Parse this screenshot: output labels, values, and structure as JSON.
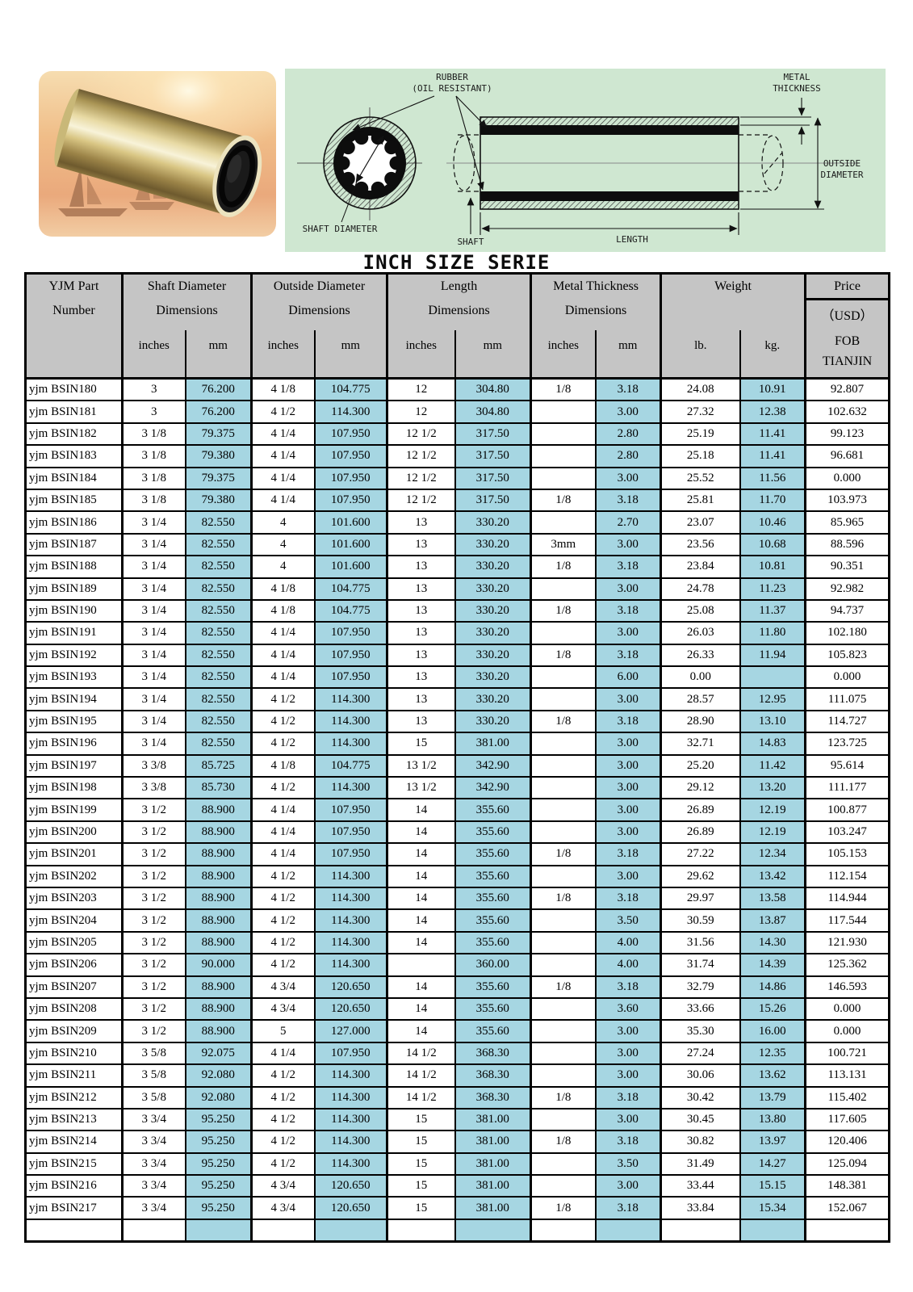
{
  "title": "INCH SIZE SERIE",
  "colors": {
    "highlight": "#a6d6e2",
    "header_bg": "#c5c5c5",
    "diagram_bg": "#cfe7d1"
  },
  "diagram": {
    "labels": {
      "rubber_line1": "RUBBER",
      "rubber_line2": "(OIL RESISTANT)",
      "metal_line1": "METAL",
      "metal_line2": "THICKNESS",
      "outside_line1": "OUTSIDE",
      "outside_line2": "DIAMETER",
      "shaft_diameter": "SHAFT DIAMETER",
      "shaft": "SHAFT",
      "length": "LENGTH"
    }
  },
  "table": {
    "header": {
      "yjm_line1": "YJM Part",
      "yjm_line2": "Number",
      "shaft_group": "Shaft  Diameter",
      "outside_group": "Outside Diameter",
      "length_group": "Length",
      "metal_group": "Metal Thickness",
      "weight_group": "Weight",
      "price_group": "Price",
      "dimensions": "Dimensions",
      "usd": "（USD）",
      "fob_line1": "FOB",
      "fob_line2": "TIANJIN",
      "inches": "inches",
      "mm": "mm",
      "lb": "lb.",
      "kg": "kg."
    },
    "rows": [
      [
        "yjm BSIN180",
        "3",
        "76.200",
        "4 1/8",
        "104.775",
        "12",
        "304.80",
        "1/8",
        "3.18",
        "24.08",
        "10.91",
        "92.807"
      ],
      [
        "yjm BSIN181",
        "3",
        "76.200",
        "4 1/2",
        "114.300",
        "12",
        "304.80",
        "",
        "3.00",
        "27.32",
        "12.38",
        "102.632"
      ],
      [
        "yjm BSIN182",
        "3 1/8",
        "79.375",
        "4 1/4",
        "107.950",
        "12 1/2",
        "317.50",
        "",
        "2.80",
        "25.19",
        "11.41",
        "99.123"
      ],
      [
        "yjm BSIN183",
        "3 1/8",
        "79.380",
        "4 1/4",
        "107.950",
        "12 1/2",
        "317.50",
        "",
        "2.80",
        "25.18",
        "11.41",
        "96.681"
      ],
      [
        "yjm BSIN184",
        "3 1/8",
        "79.375",
        "4 1/4",
        "107.950",
        "12 1/2",
        "317.50",
        "",
        "3.00",
        "25.52",
        "11.56",
        "0.000"
      ],
      [
        "yjm BSIN185",
        "3 1/8",
        "79.380",
        "4 1/4",
        "107.950",
        "12 1/2",
        "317.50",
        "1/8",
        "3.18",
        "25.81",
        "11.70",
        "103.973"
      ],
      [
        "yjm BSIN186",
        "3 1/4",
        "82.550",
        "4",
        "101.600",
        "13",
        "330.20",
        "",
        "2.70",
        "23.07",
        "10.46",
        "85.965"
      ],
      [
        "yjm BSIN187",
        "3 1/4",
        "82.550",
        "4",
        "101.600",
        "13",
        "330.20",
        "3mm",
        "3.00",
        "23.56",
        "10.68",
        "88.596"
      ],
      [
        "yjm BSIN188",
        "3 1/4",
        "82.550",
        "4",
        "101.600",
        "13",
        "330.20",
        "1/8",
        "3.18",
        "23.84",
        "10.81",
        "90.351"
      ],
      [
        "yjm BSIN189",
        "3 1/4",
        "82.550",
        "4 1/8",
        "104.775",
        "13",
        "330.20",
        "",
        "3.00",
        "24.78",
        "11.23",
        "92.982"
      ],
      [
        "yjm BSIN190",
        "3 1/4",
        "82.550",
        "4 1/8",
        "104.775",
        "13",
        "330.20",
        "1/8",
        "3.18",
        "25.08",
        "11.37",
        "94.737"
      ],
      [
        "yjm BSIN191",
        "3 1/4",
        "82.550",
        "4 1/4",
        "107.950",
        "13",
        "330.20",
        "",
        "3.00",
        "26.03",
        "11.80",
        "102.180"
      ],
      [
        "yjm BSIN192",
        "3 1/4",
        "82.550",
        "4 1/4",
        "107.950",
        "13",
        "330.20",
        "1/8",
        "3.18",
        "26.33",
        "11.94",
        "105.823"
      ],
      [
        "yjm BSIN193",
        "3 1/4",
        "82.550",
        "4 1/4",
        "107.950",
        "13",
        "330.20",
        "",
        "6.00",
        "0.00",
        "",
        "0.000"
      ],
      [
        "yjm BSIN194",
        "3 1/4",
        "82.550",
        "4 1/2",
        "114.300",
        "13",
        "330.20",
        "",
        "3.00",
        "28.57",
        "12.95",
        "111.075"
      ],
      [
        "yjm BSIN195",
        "3 1/4",
        "82.550",
        "4 1/2",
        "114.300",
        "13",
        "330.20",
        "1/8",
        "3.18",
        "28.90",
        "13.10",
        "114.727"
      ],
      [
        "yjm BSIN196",
        "3 1/4",
        "82.550",
        "4 1/2",
        "114.300",
        "15",
        "381.00",
        "",
        "3.00",
        "32.71",
        "14.83",
        "123.725"
      ],
      [
        "yjm BSIN197",
        "3 3/8",
        "85.725",
        "4 1/8",
        "104.775",
        "13 1/2",
        "342.90",
        "",
        "3.00",
        "25.20",
        "11.42",
        "95.614"
      ],
      [
        "yjm BSIN198",
        "3 3/8",
        "85.730",
        "4 1/2",
        "114.300",
        "13 1/2",
        "342.90",
        "",
        "3.00",
        "29.12",
        "13.20",
        "111.177"
      ],
      [
        "yjm BSIN199",
        "3 1/2",
        "88.900",
        "4 1/4",
        "107.950",
        "14",
        "355.60",
        "",
        "3.00",
        "26.89",
        "12.19",
        "100.877"
      ],
      [
        "yjm BSIN200",
        "3 1/2",
        "88.900",
        "4 1/4",
        "107.950",
        "14",
        "355.60",
        "",
        "3.00",
        "26.89",
        "12.19",
        "103.247"
      ],
      [
        "yjm BSIN201",
        "3 1/2",
        "88.900",
        "4 1/4",
        "107.950",
        "14",
        "355.60",
        "1/8",
        "3.18",
        "27.22",
        "12.34",
        "105.153"
      ],
      [
        "yjm BSIN202",
        "3 1/2",
        "88.900",
        "4 1/2",
        "114.300",
        "14",
        "355.60",
        "",
        "3.00",
        "29.62",
        "13.42",
        "112.154"
      ],
      [
        "yjm BSIN203",
        "3 1/2",
        "88.900",
        "4 1/2",
        "114.300",
        "14",
        "355.60",
        "1/8",
        "3.18",
        "29.97",
        "13.58",
        "114.944"
      ],
      [
        "yjm BSIN204",
        "3 1/2",
        "88.900",
        "4 1/2",
        "114.300",
        "14",
        "355.60",
        "",
        "3.50",
        "30.59",
        "13.87",
        "117.544"
      ],
      [
        "yjm BSIN205",
        "3 1/2",
        "88.900",
        "4 1/2",
        "114.300",
        "14",
        "355.60",
        "",
        "4.00",
        "31.56",
        "14.30",
        "121.930"
      ],
      [
        "yjm BSIN206",
        "3 1/2",
        "90.000",
        "4 1/2",
        "114.300",
        "",
        "360.00",
        "",
        "4.00",
        "31.74",
        "14.39",
        "125.362"
      ],
      [
        "yjm BSIN207",
        "3 1/2",
        "88.900",
        "4 3/4",
        "120.650",
        "14",
        "355.60",
        "1/8",
        "3.18",
        "32.79",
        "14.86",
        "146.593"
      ],
      [
        "yjm BSIN208",
        "3 1/2",
        "88.900",
        "4 3/4",
        "120.650",
        "14",
        "355.60",
        "",
        "3.60",
        "33.66",
        "15.26",
        "0.000"
      ],
      [
        "yjm BSIN209",
        "3 1/2",
        "88.900",
        "5",
        "127.000",
        "14",
        "355.60",
        "",
        "3.00",
        "35.30",
        "16.00",
        "0.000"
      ],
      [
        "yjm BSIN210",
        "3 5/8",
        "92.075",
        "4 1/4",
        "107.950",
        "14 1/2",
        "368.30",
        "",
        "3.00",
        "27.24",
        "12.35",
        "100.721"
      ],
      [
        "yjm BSIN211",
        "3 5/8",
        "92.080",
        "4 1/2",
        "114.300",
        "14 1/2",
        "368.30",
        "",
        "3.00",
        "30.06",
        "13.62",
        "113.131"
      ],
      [
        "yjm BSIN212",
        "3 5/8",
        "92.080",
        "4 1/2",
        "114.300",
        "14 1/2",
        "368.30",
        "1/8",
        "3.18",
        "30.42",
        "13.79",
        "115.402"
      ],
      [
        "yjm BSIN213",
        "3 3/4",
        "95.250",
        "4 1/2",
        "114.300",
        "15",
        "381.00",
        "",
        "3.00",
        "30.45",
        "13.80",
        "117.605"
      ],
      [
        "yjm BSIN214",
        "3 3/4",
        "95.250",
        "4 1/2",
        "114.300",
        "15",
        "381.00",
        "1/8",
        "3.18",
        "30.82",
        "13.97",
        "120.406"
      ],
      [
        "yjm BSIN215",
        "3 3/4",
        "95.250",
        "4 1/2",
        "114.300",
        "15",
        "381.00",
        "",
        "3.50",
        "31.49",
        "14.27",
        "125.094"
      ],
      [
        "yjm BSIN216",
        "3 3/4",
        "95.250",
        "4 3/4",
        "120.650",
        "15",
        "381.00",
        "",
        "3.00",
        "33.44",
        "15.15",
        "148.381"
      ],
      [
        "yjm BSIN217",
        "3 3/4",
        "95.250",
        "4 3/4",
        "120.650",
        "15",
        "381.00",
        "1/8",
        "3.18",
        "33.84",
        "15.34",
        "152.067"
      ],
      [
        "",
        "",
        "",
        "",
        "",
        "",
        "",
        "",
        "",
        "",
        "",
        ""
      ]
    ]
  }
}
